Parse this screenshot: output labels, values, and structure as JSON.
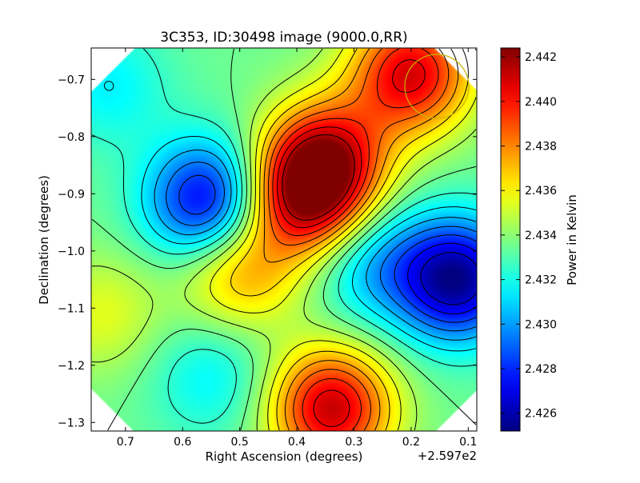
{
  "chart_data": {
    "type": "heatmap",
    "title": "3C353, ID:30498 image (9000.0,RR)",
    "xlabel": "Right Ascension (degrees)",
    "ylabel": "Declination (degrees)",
    "x_offset_label": "+2.597e2",
    "xlim": [
      0.76,
      0.085
    ],
    "ylim": [
      -1.315,
      -0.645
    ],
    "x_ticks": [
      0.7,
      0.6,
      0.5,
      0.4,
      0.3,
      0.2,
      0.1
    ],
    "y_ticks": [
      -0.7,
      -0.8,
      -0.9,
      -1.0,
      -1.1,
      -1.2,
      -1.3
    ],
    "grid": false,
    "contours": true,
    "beam_marker_color": "#c8b400",
    "colorbar": {
      "label": "Power in Kelvin",
      "min": 2.4252,
      "max": 2.4424,
      "ticks": [
        2.442,
        2.44,
        2.438,
        2.436,
        2.434,
        2.432,
        2.43,
        2.428,
        2.426
      ],
      "colormap": "jet"
    },
    "background_level": 2.4335,
    "features": [
      {
        "type": "peak",
        "x": 0.385,
        "y": -0.905,
        "value": 2.4412
      },
      {
        "type": "peak",
        "x": 0.345,
        "y": -0.835,
        "value": 2.4395
      },
      {
        "type": "peak",
        "x": 0.2,
        "y": -0.69,
        "value": 2.4408
      },
      {
        "type": "peak",
        "x": 0.34,
        "y": -1.275,
        "value": 2.4412
      },
      {
        "type": "peak",
        "x": 0.5,
        "y": -1.03,
        "value": 2.4378
      },
      {
        "type": "peak",
        "x": 0.74,
        "y": -1.11,
        "value": 2.4355
      },
      {
        "type": "trough",
        "x": 0.555,
        "y": -0.915,
        "value": 2.4265
      },
      {
        "type": "trough",
        "x": 0.12,
        "y": -1.05,
        "value": 2.4255
      },
      {
        "type": "trough",
        "x": 0.27,
        "y": -1.02,
        "value": 2.4305
      },
      {
        "type": "trough",
        "x": 0.55,
        "y": -1.22,
        "value": 2.4315
      },
      {
        "type": "trough",
        "x": 0.73,
        "y": -0.71,
        "value": 2.4315
      }
    ]
  }
}
